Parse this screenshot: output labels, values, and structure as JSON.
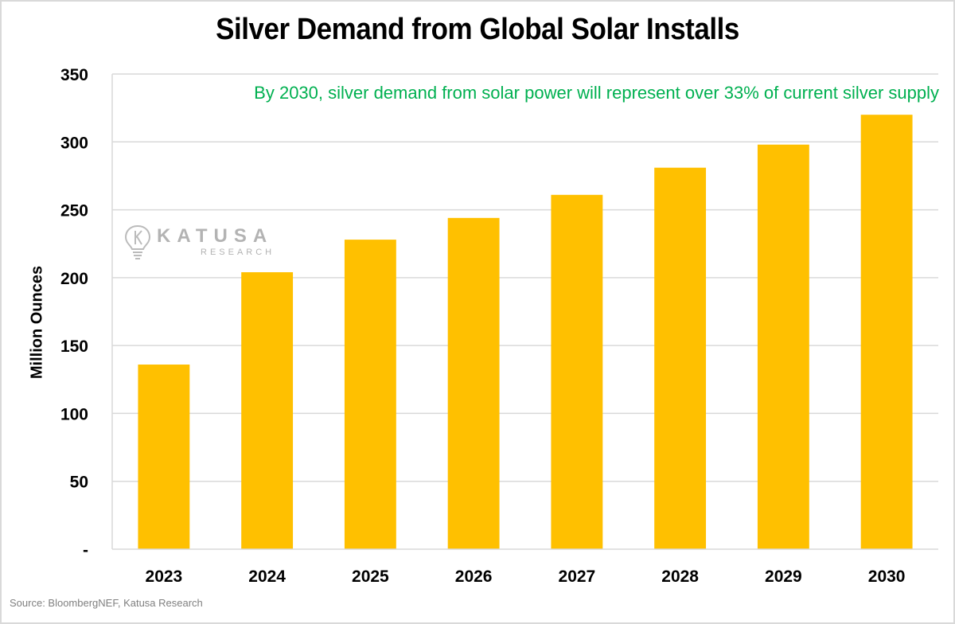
{
  "title": "Silver Demand from Global Solar Installs",
  "annotation": "By 2030, silver demand from solar power will represent over 33% of current silver supply",
  "source": "Source: BloombergNEF, Katusa Research",
  "watermark": {
    "icon": "lightbulb-k-icon",
    "name": "KATUSA",
    "subtitle": "RESEARCH"
  },
  "colors": {
    "bar": "#ffc000",
    "annotation": "#00b050",
    "grid": "#d9d9d9"
  },
  "chart_data": {
    "type": "bar",
    "title": "Silver Demand from Global Solar Installs",
    "xlabel": "",
    "ylabel": "Million Ounces",
    "categories": [
      "2023",
      "2024",
      "2025",
      "2026",
      "2027",
      "2028",
      "2029",
      "2030"
    ],
    "values": [
      136,
      204,
      228,
      244,
      261,
      281,
      298,
      320
    ],
    "ylim": [
      0,
      350
    ],
    "yticks": [
      0,
      50,
      100,
      150,
      200,
      250,
      300,
      350
    ],
    "ytick_labels": [
      "-",
      "50",
      "100",
      "150",
      "200",
      "250",
      "300",
      "350"
    ],
    "grid": true,
    "legend": "none",
    "annotations": [
      "By 2030, silver demand from solar power will represent over 33% of current silver supply"
    ]
  }
}
